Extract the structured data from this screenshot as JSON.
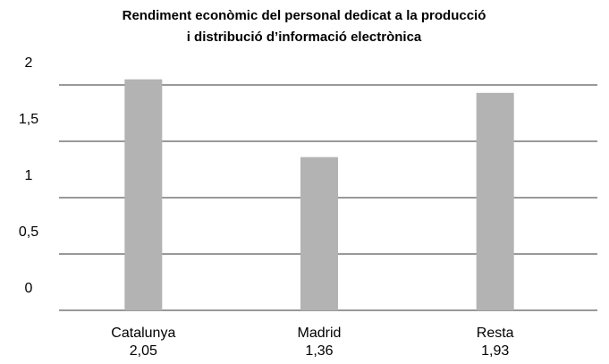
{
  "chart_data": {
    "type": "bar",
    "title": [
      "Rendiment econòmic del personal dedicat a la producció",
      "i distribució d’informació electrònica"
    ],
    "categories": [
      "Catalunya",
      "Madrid",
      "Resta"
    ],
    "values": [
      2.05,
      1.36,
      1.93
    ],
    "value_labels": [
      "2,05",
      "1,36",
      "1,93"
    ],
    "color": "#b3b3b3",
    "ylim": [
      0,
      2.1
    ],
    "yticks": [
      0,
      {
        "value": 0.5,
        "label": "0,5"
      },
      1,
      {
        "value": 1.5,
        "label": "1,5"
      },
      2
    ],
    "grid": true
  }
}
